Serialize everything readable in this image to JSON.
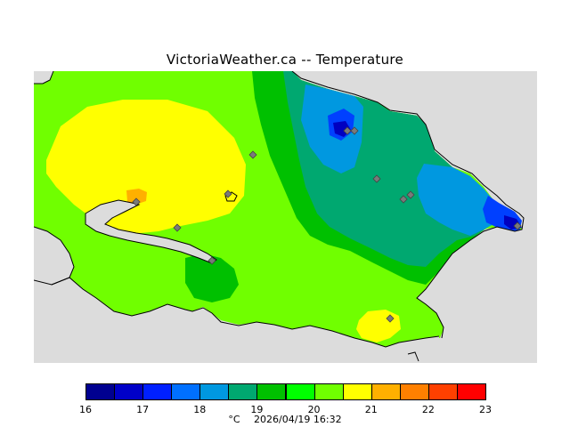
{
  "header": {
    "title": "VictoriaWeather.ca -- Temperature"
  },
  "map": {
    "land_background": "#dcdcdc",
    "coast_color": "#000000",
    "station_color": "#7a7a7a",
    "contour_colors": {
      "c19_20": "#00c000",
      "c20_21": "#70ff00",
      "c21_22": "#ffff00",
      "c22_23": "#ffb000",
      "c18_19": "#00a870",
      "c17_18": "#0098e0",
      "c16_17": "#0040ff",
      "c15_16": "#0000c0"
    }
  },
  "legend": {
    "bins": [
      {
        "color": "#000090"
      },
      {
        "color": "#0000c8"
      },
      {
        "color": "#0020ff"
      },
      {
        "color": "#0070ff"
      },
      {
        "color": "#0098e0"
      },
      {
        "color": "#00a870"
      },
      {
        "color": "#00c000"
      },
      {
        "color": "#00ff00"
      },
      {
        "color": "#70ff00"
      },
      {
        "color": "#ffff00"
      },
      {
        "color": "#ffb000"
      },
      {
        "color": "#ff8000"
      },
      {
        "color": "#ff4000"
      },
      {
        "color": "#ff0000"
      }
    ],
    "ticks": [
      "16",
      "17",
      "18",
      "19",
      "20",
      "21",
      "22",
      "23"
    ]
  },
  "footer": {
    "unit": "°C",
    "timestamp": "2026/04/19 16:32"
  }
}
